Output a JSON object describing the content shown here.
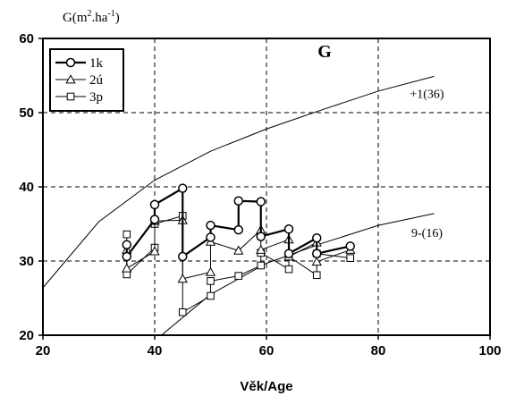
{
  "chart_data": {
    "type": "line",
    "title": "G",
    "xlabel": "Věk/Age",
    "ylabel": {
      "base": "G(m",
      "sup1": "2",
      "mid": ".ha",
      "sup2": "-1",
      "end": ")"
    },
    "xlim": [
      20,
      100
    ],
    "ylim": [
      20,
      60
    ],
    "xticks": [
      20,
      40,
      60,
      80,
      100
    ],
    "yticks": [
      20,
      30,
      40,
      50,
      60
    ],
    "grid": "dashed",
    "legend_position": "top-left",
    "reference_curves": [
      {
        "name": "+1(36)",
        "x": [
          20,
          30,
          40,
          50,
          60,
          70,
          80,
          90
        ],
        "y": [
          26.4,
          35.3,
          40.9,
          44.8,
          47.8,
          50.4,
          52.9,
          54.9
        ]
      },
      {
        "name": "9-(16)",
        "x": [
          41.2,
          50,
          60,
          70,
          80,
          90
        ],
        "y": [
          20.0,
          25.5,
          29.7,
          32.4,
          34.8,
          36.4
        ]
      }
    ],
    "series": [
      {
        "name": "1k",
        "marker": "circle",
        "x": [
          35,
          35,
          40,
          40,
          45,
          45,
          50,
          50,
          55,
          55,
          59,
          59,
          64,
          64,
          69,
          69,
          75
        ],
        "y": [
          32.2,
          30.6,
          35.6,
          37.6,
          39.8,
          30.6,
          33.2,
          34.8,
          34.2,
          38.1,
          38.0,
          33.3,
          34.3,
          31.0,
          33.1,
          31.0,
          32.0
        ]
      },
      {
        "name": "2ú",
        "marker": "triangle",
        "x": [
          35,
          35,
          40,
          40,
          45,
          45,
          50,
          50,
          55,
          59,
          59,
          64,
          64,
          69,
          69,
          75
        ],
        "y": [
          31.5,
          29.0,
          31.3,
          35.4,
          35.5,
          27.6,
          28.5,
          32.6,
          31.4,
          34.2,
          31.5,
          32.9,
          30.6,
          32.5,
          29.9,
          31.5
        ]
      },
      {
        "name": "3p",
        "marker": "square",
        "x": [
          35,
          35,
          40,
          40,
          45,
          45,
          50,
          50,
          55,
          59,
          59,
          64,
          64,
          69,
          69,
          75
        ],
        "y": [
          33.6,
          28.2,
          31.8,
          35.0,
          36.1,
          23.1,
          25.3,
          27.3,
          28.0,
          29.4,
          31.1,
          28.9,
          30.6,
          28.1,
          31.0,
          30.4
        ]
      }
    ]
  }
}
